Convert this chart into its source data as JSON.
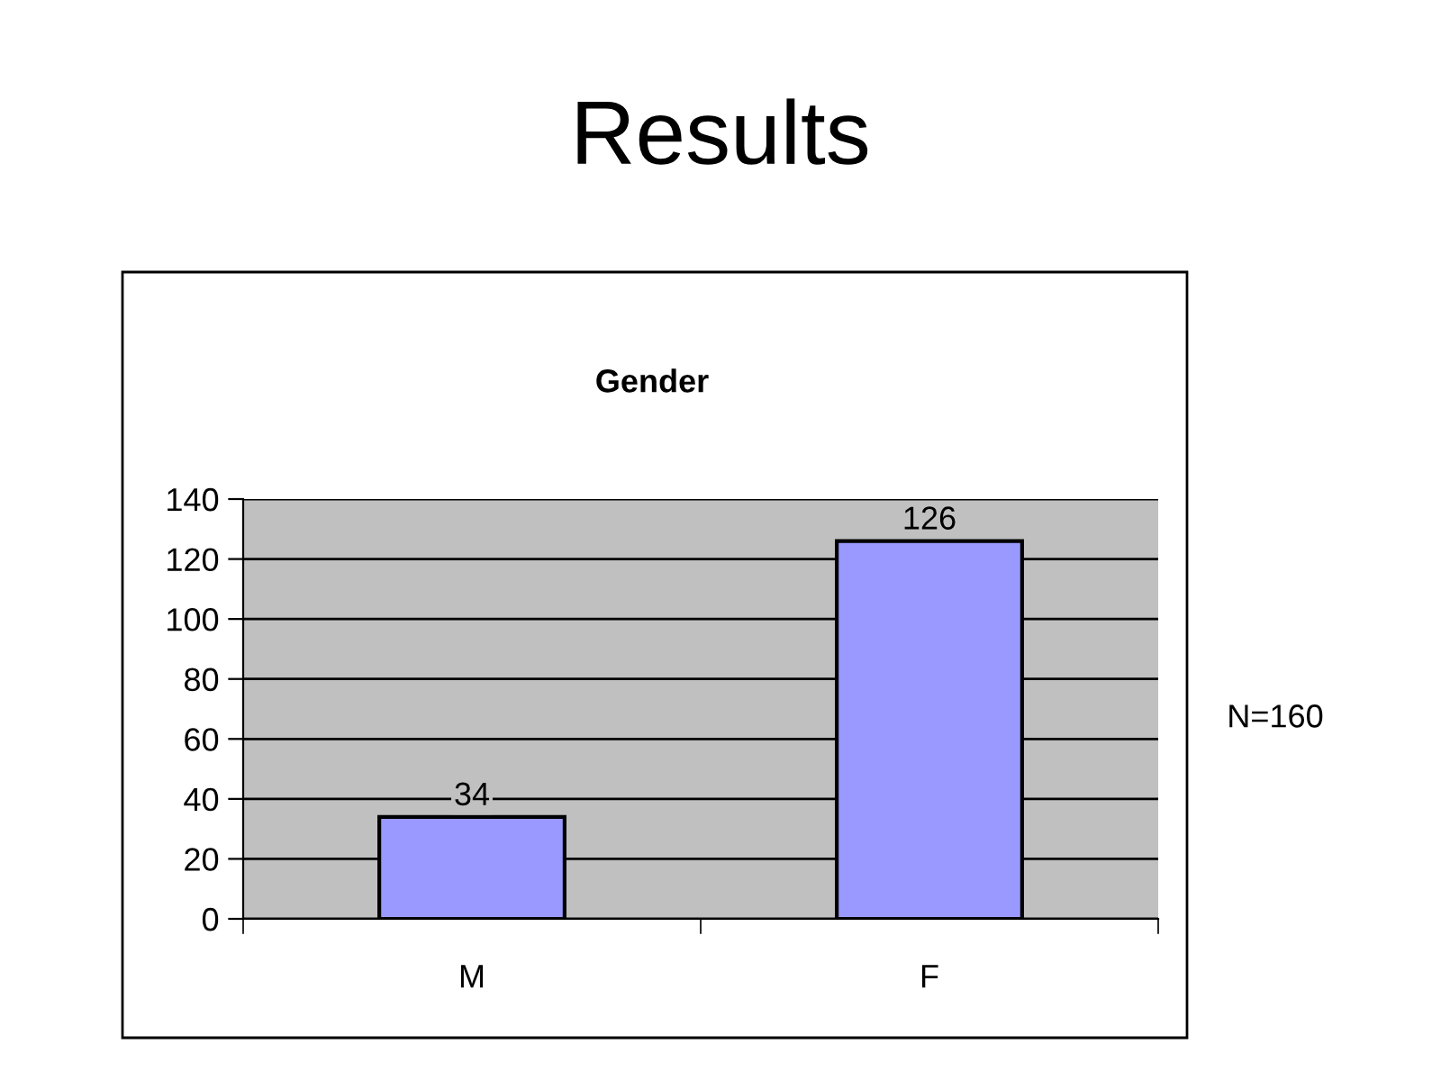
{
  "chart_data": {
    "type": "bar",
    "title": "Results",
    "subtitle": "Gender",
    "categories": [
      "M",
      "F"
    ],
    "values": [
      34,
      126
    ],
    "color": "#9999ff",
    "ylim": [
      0,
      140
    ],
    "yticks": [
      0,
      20,
      40,
      60,
      80,
      100,
      120,
      140
    ],
    "grid": "y",
    "data_labels": true,
    "annotations": [
      "N=160"
    ]
  }
}
